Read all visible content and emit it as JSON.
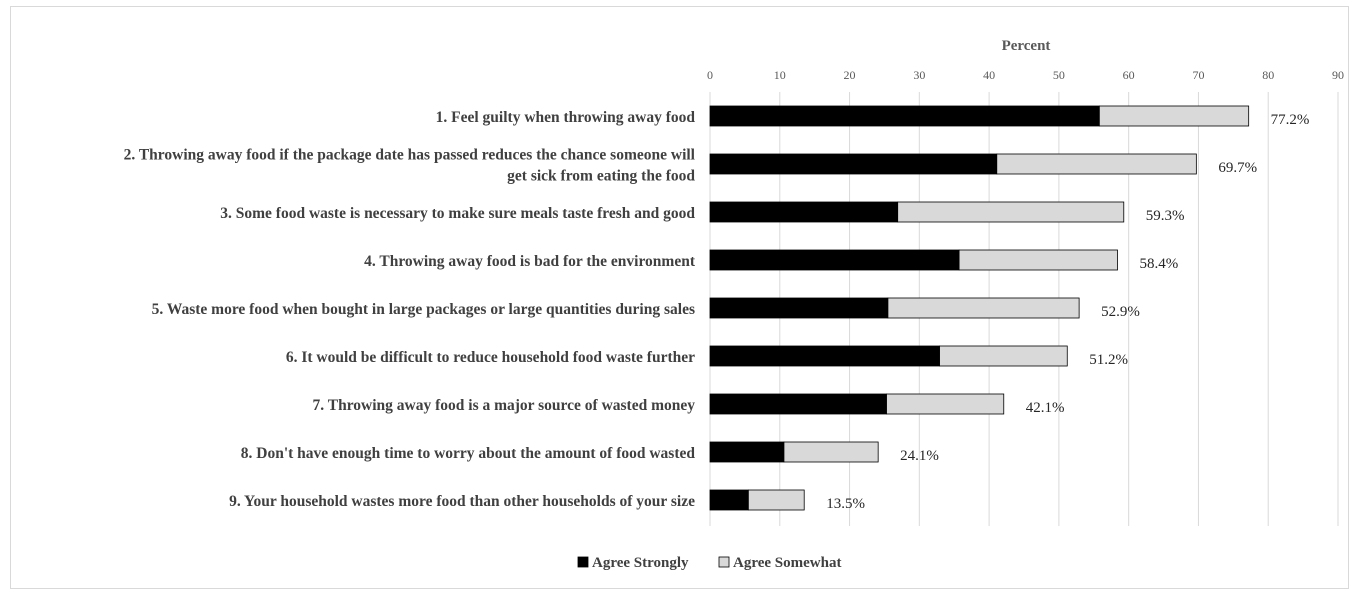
{
  "chart_data": {
    "type": "bar",
    "orientation": "horizontal",
    "stacked": true,
    "xlabel": "Percent",
    "xlim": [
      0,
      90
    ],
    "xticks": [
      "0",
      "10",
      "20",
      "30",
      "40",
      "50",
      "60",
      "70",
      "80",
      "90"
    ],
    "grid": true,
    "legend_position": "bottom",
    "categories": [
      [
        "1. Feel guilty when throwing away food"
      ],
      [
        "2. Throwing away food if the package date has passed reduces the chance someone will",
        "get sick from eating the food"
      ],
      [
        "3. Some food waste is necessary to make sure meals taste fresh and good"
      ],
      [
        "4. Throwing away food is bad for the environment"
      ],
      [
        "5. Waste more food when bought in large packages or large quantities during sales"
      ],
      [
        "6. It would be difficult to reduce household food waste further"
      ],
      [
        "7. Throwing away food is a major source of wasted money"
      ],
      [
        "8. Don't have enough time to worry about the amount of food wasted"
      ],
      [
        "9. Your household wastes more food than other households of your size"
      ]
    ],
    "series": [
      {
        "name": "Agree Strongly",
        "color": "#000000",
        "values": [
          55.8,
          41.1,
          26.9,
          35.7,
          25.5,
          32.9,
          25.3,
          10.6,
          5.5
        ]
      },
      {
        "name": "Agree Somewhat",
        "color": "#d9d9d9",
        "values": [
          21.4,
          28.6,
          32.4,
          22.7,
          27.4,
          18.3,
          16.8,
          13.5,
          8.0
        ]
      }
    ],
    "total_labels": [
      "77.2%",
      "69.7%",
      "59.3%",
      "58.4%",
      "52.9%",
      "51.2%",
      "42.1%",
      "24.1%",
      "13.5%"
    ]
  }
}
